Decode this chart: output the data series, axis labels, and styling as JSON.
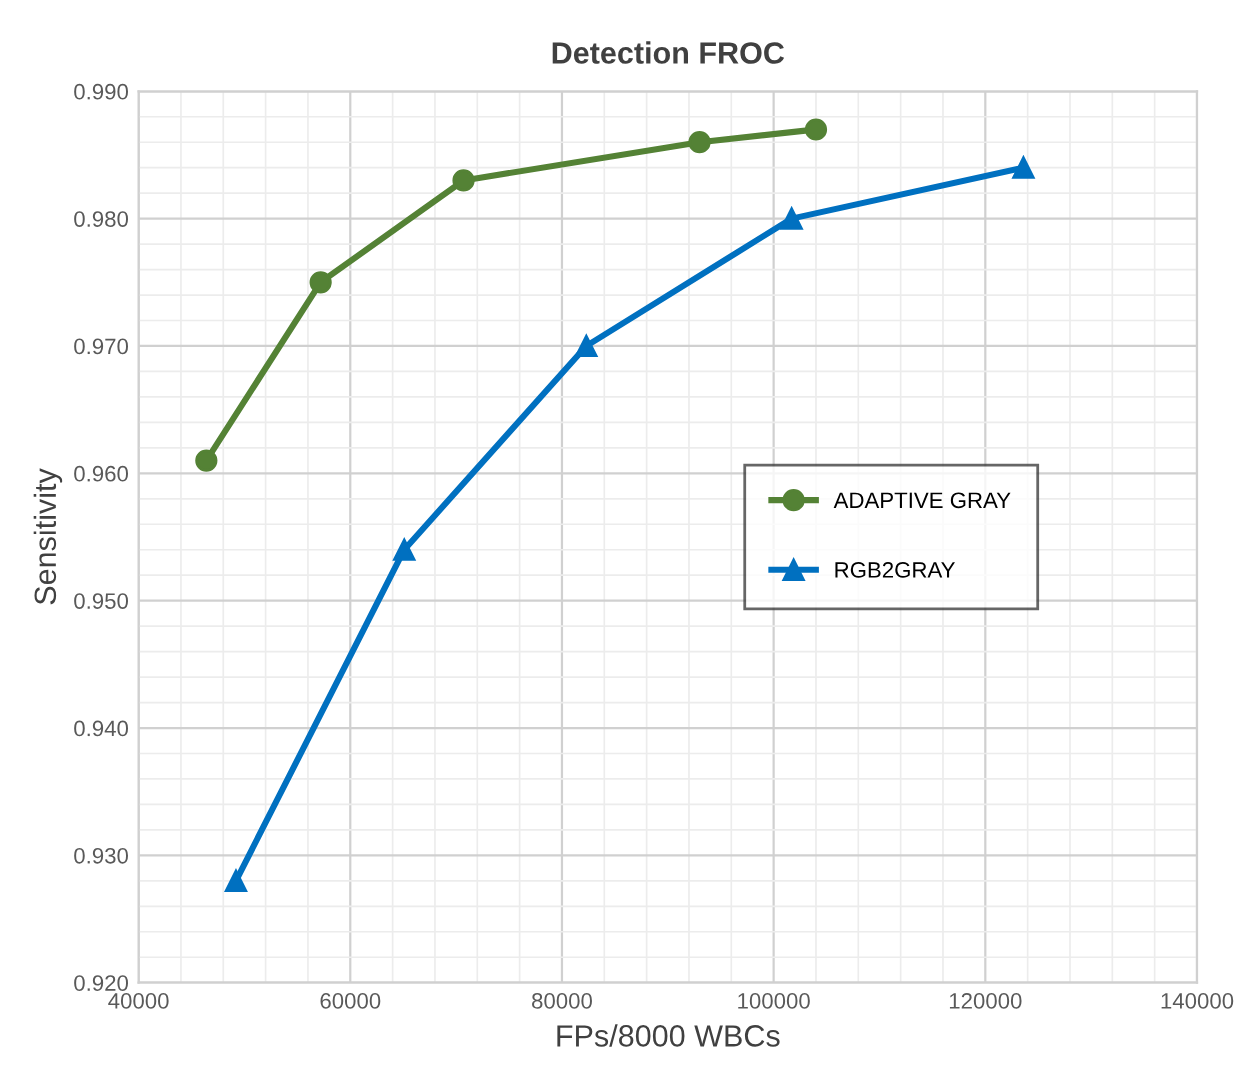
{
  "chart_data": {
    "type": "line",
    "title": "Detection FROC",
    "xlabel": "FPs/8000 WBCs",
    "ylabel": "Sensitivity",
    "series": [
      {
        "name": "ADAPTIVE GRAY",
        "color": "#548235",
        "marker": "circle",
        "x": [
          46400,
          57200,
          70700,
          93000,
          104000
        ],
        "values": [
          0.961,
          0.975,
          0.983,
          0.986,
          0.987
        ]
      },
      {
        "name": "RGB2GRAY",
        "color": "#0070c0",
        "marker": "triangle",
        "x": [
          49200,
          65100,
          82300,
          101700,
          123600
        ],
        "values": [
          0.928,
          0.954,
          0.97,
          0.98,
          0.984
        ]
      }
    ],
    "xlim": [
      40000,
      140000
    ],
    "xticks": [
      40000,
      60000,
      80000,
      100000,
      120000,
      140000
    ],
    "ylim": [
      0.92,
      0.99
    ],
    "yticks": [
      {
        "value": 0.92,
        "label": "0.920"
      },
      {
        "value": 0.93,
        "label": "0.930"
      },
      {
        "value": 0.94,
        "label": "0.940"
      },
      {
        "value": 0.95,
        "label": "0.950"
      },
      {
        "value": 0.96,
        "label": "0.960"
      },
      {
        "value": 0.97,
        "label": "0.970"
      },
      {
        "value": 0.98,
        "label": "0.980"
      },
      {
        "value": 0.99,
        "label": "0.990"
      }
    ],
    "grid": true,
    "legend": "right",
    "line_style": "solid"
  }
}
